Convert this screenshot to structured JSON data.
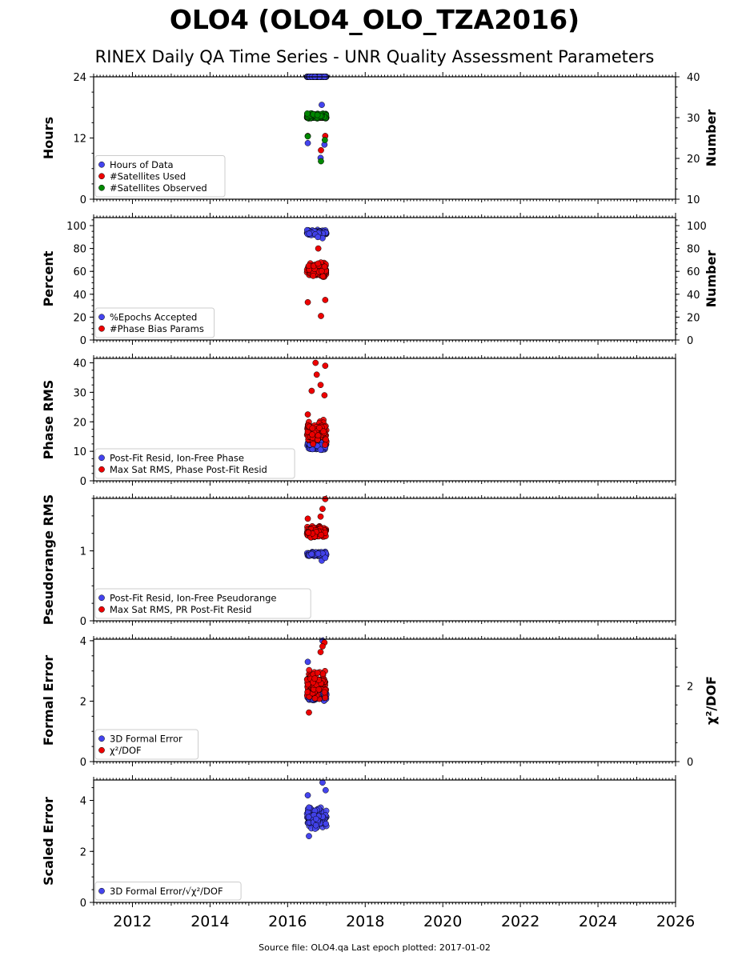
{
  "title": "OLO4 (OLO4_OLO_TZA2016)",
  "subtitle": "RINEX Daily QA Time Series - UNR Quality Assessment Parameters",
  "footer": "Source file: OLO4.qa Last epoch plotted: 2017-01-02",
  "colors": {
    "blue": "#4444ee",
    "red": "#ee0000",
    "green": "#008800"
  },
  "x_axis": {
    "range": [
      2011.0,
      2026.0
    ],
    "ticks": [
      2012,
      2014,
      2016,
      2018,
      2020,
      2022,
      2024,
      2026
    ],
    "tick_labels": [
      "2012",
      "2014",
      "2016",
      "2018",
      "2020",
      "2022",
      "2024",
      "2026"
    ]
  },
  "chart_data": [
    {
      "type": "scatter",
      "left_label": "Hours",
      "right_label": "Number",
      "left_range": [
        0,
        24
      ],
      "left_ticks": [
        0,
        12,
        24
      ],
      "left_tick_labels": [
        "0",
        "12",
        "24"
      ],
      "right_range": [
        10,
        40
      ],
      "right_ticks": [
        10,
        20,
        30,
        40
      ],
      "right_tick_labels": [
        "10",
        "20",
        "30",
        "40"
      ],
      "legend_labels": [
        "Hours of Data",
        "#Satellites Used",
        "#Satellites Observed"
      ],
      "series": [
        {
          "name": "Hours of Data",
          "axis": "left",
          "color": "blue",
          "x_range": [
            2016.5,
            2017.0
          ],
          "y_base": 24.0,
          "y_spread": 0.0,
          "extra": [
            [
              2016.52,
              11.0
            ],
            [
              2016.95,
              10.7
            ],
            [
              2016.88,
              18.5
            ],
            [
              2016.85,
              8.1
            ]
          ]
        },
        {
          "name": "#Satellites Used",
          "axis": "right",
          "color": "red",
          "x_range": [
            2016.5,
            2017.0
          ],
          "y_base": 30.0,
          "y_spread": 0.0,
          "extra": [
            [
              2016.52,
              25.5
            ],
            [
              2016.86,
              22.0
            ],
            [
              2016.97,
              25.5
            ]
          ]
        },
        {
          "name": "#Satellites Observed",
          "axis": "right",
          "color": "green",
          "x_range": [
            2016.5,
            2017.0
          ],
          "y_base": 30.4,
          "y_spread": 0.7,
          "extra": [
            [
              2016.52,
              25.4
            ],
            [
              2016.86,
              19.3
            ],
            [
              2016.96,
              24.5
            ]
          ]
        }
      ]
    },
    {
      "type": "scatter",
      "left_label": "Percent",
      "right_label": "Number",
      "left_range": [
        0,
        107
      ],
      "left_ticks": [
        0,
        20,
        40,
        60,
        80,
        100
      ],
      "left_tick_labels": [
        "0",
        "20",
        "40",
        "60",
        "80",
        "100"
      ],
      "right_range": [
        0,
        107
      ],
      "right_ticks": [
        0,
        20,
        40,
        60,
        80,
        100
      ],
      "right_tick_labels": [
        "0",
        "20",
        "40",
        "60",
        "80",
        "100"
      ],
      "legend_labels": [
        "%Epochs Accepted",
        "#Phase Bias Params"
      ],
      "series": [
        {
          "name": "%Epochs Accepted",
          "axis": "left",
          "color": "blue",
          "x_range": [
            2016.5,
            2017.0
          ],
          "y_base": 94.0,
          "y_spread": 2.5,
          "extra": [
            [
              2016.9,
              89.0
            ],
            [
              2016.78,
              90.0
            ]
          ]
        },
        {
          "name": "#Phase Bias Params",
          "axis": "right",
          "color": "red",
          "x_range": [
            2016.5,
            2017.0
          ],
          "y_base": 61.0,
          "y_spread": 7.0,
          "extra": [
            [
              2016.52,
              33.0
            ],
            [
              2016.86,
              21.0
            ],
            [
              2016.97,
              35.0
            ],
            [
              2016.79,
              80.0
            ]
          ]
        }
      ]
    },
    {
      "type": "scatter",
      "left_label": "Phase RMS",
      "right_label": "",
      "left_range": [
        0,
        41.5
      ],
      "left_ticks": [
        0,
        10,
        20,
        30,
        40
      ],
      "left_tick_labels": [
        "0",
        "10",
        "20",
        "30",
        "40"
      ],
      "legend_labels": [
        "Post-Fit Resid, Ion-Free Phase",
        "Max Sat RMS, Phase Post-Fit Resid"
      ],
      "series": [
        {
          "name": "Post-Fit Resid, Ion-Free Phase",
          "axis": "left",
          "color": "blue",
          "x_range": [
            2016.5,
            2017.0
          ],
          "y_base": 11.8,
          "y_spread": 1.4,
          "extra": [
            [
              2016.97,
              11.5
            ],
            [
              2016.85,
              10.5
            ]
          ]
        },
        {
          "name": "Max Sat RMS, Phase Post-Fit Resid",
          "axis": "left",
          "color": "red",
          "x_range": [
            2016.5,
            2017.0
          ],
          "y_base": 16.5,
          "y_spread": 4.5,
          "extra": [
            [
              2016.72,
              40.0
            ],
            [
              2016.97,
              39.0
            ],
            [
              2016.62,
              30.5
            ],
            [
              2016.75,
              36.0
            ],
            [
              2016.85,
              32.5
            ],
            [
              2016.95,
              29.0
            ],
            [
              2016.52,
              22.5
            ]
          ]
        }
      ]
    },
    {
      "type": "scatter",
      "left_label": "Pseudorange RMS",
      "right_label": "",
      "left_range": [
        0,
        1.75
      ],
      "left_ticks": [
        0,
        1
      ],
      "left_tick_labels": [
        "0",
        "1"
      ],
      "legend_labels": [
        "Post-Fit Resid, Ion-Free Pseudorange",
        "Max Sat RMS, PR Post-Fit Resid"
      ],
      "series": [
        {
          "name": "Post-Fit Resid, Ion-Free Pseudorange",
          "axis": "left",
          "color": "blue",
          "x_range": [
            2016.5,
            2017.0
          ],
          "y_base": 0.955,
          "y_spread": 0.035,
          "extra": [
            [
              2016.88,
              0.86
            ],
            [
              2016.97,
              0.9
            ]
          ]
        },
        {
          "name": "Max Sat RMS, PR Post-Fit Resid",
          "axis": "left",
          "color": "red",
          "x_range": [
            2016.5,
            2017.0
          ],
          "y_base": 1.27,
          "y_spread": 0.09,
          "extra": [
            [
              2016.97,
              1.74
            ],
            [
              2016.9,
              1.6
            ],
            [
              2016.52,
              1.46
            ],
            [
              2016.85,
              1.49
            ]
          ]
        }
      ]
    },
    {
      "type": "scatter",
      "left_label": "Formal Error",
      "right_label": "χ²/DOF",
      "left_range": [
        0,
        4.05
      ],
      "left_ticks": [
        0,
        2,
        4
      ],
      "left_tick_labels": [
        "0",
        "2",
        "4"
      ],
      "right_range": [
        0,
        3.24
      ],
      "right_ticks": [
        0,
        2
      ],
      "right_tick_labels": [
        "0",
        "2"
      ],
      "legend_labels": [
        "3D Formal Error",
        "χ²/DOF"
      ],
      "series": [
        {
          "name": "3D Formal Error",
          "axis": "left",
          "color": "blue",
          "x_range": [
            2016.5,
            2017.0
          ],
          "y_base": 2.2,
          "y_spread": 0.2,
          "extra": [
            [
              2016.52,
              3.3
            ],
            [
              2016.9,
              4.0
            ]
          ]
        },
        {
          "name": "χ²/DOF",
          "axis": "right",
          "color": "red",
          "x_range": [
            2016.5,
            2017.0
          ],
          "y_base": 2.0,
          "y_spread": 0.45,
          "extra": [
            [
              2016.95,
              3.15
            ],
            [
              2016.9,
              3.05
            ],
            [
              2016.55,
              1.3
            ],
            [
              2016.85,
              2.9
            ]
          ]
        }
      ]
    },
    {
      "type": "scatter",
      "left_label": "Scaled Error",
      "right_label": "",
      "left_range": [
        0,
        4.8
      ],
      "left_ticks": [
        0,
        2,
        4
      ],
      "left_tick_labels": [
        "0",
        "2",
        "4"
      ],
      "legend_labels": [
        "3D Formal Error/√χ²/DOF"
      ],
      "series": [
        {
          "name": "3D Formal Error/√χ²/DOF",
          "axis": "left",
          "color": "blue",
          "x_range": [
            2016.5,
            2017.0
          ],
          "y_base": 3.3,
          "y_spread": 0.5,
          "extra": [
            [
              2016.9,
              4.7
            ],
            [
              2016.52,
              4.2
            ],
            [
              2016.98,
              4.4
            ],
            [
              2016.55,
              2.6
            ]
          ]
        }
      ]
    }
  ]
}
